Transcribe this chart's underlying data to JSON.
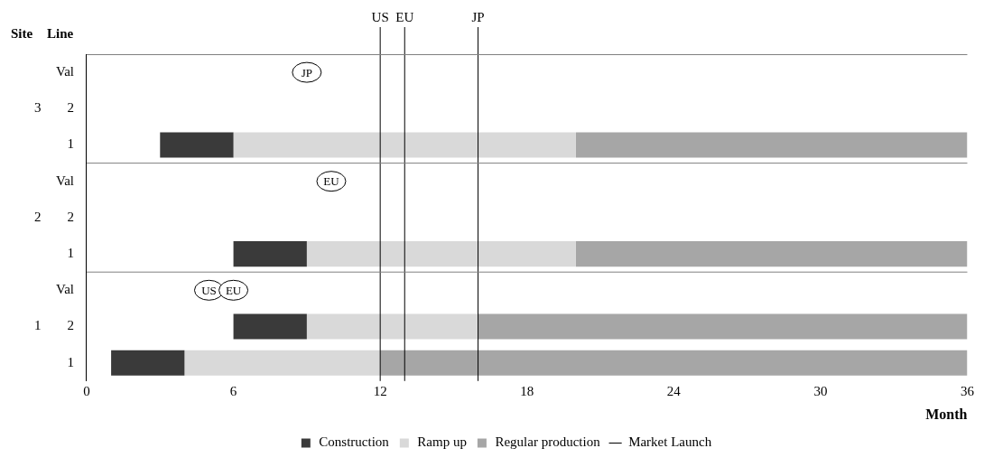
{
  "chart_data": {
    "type": "bar",
    "orientation": "horizontal",
    "ylabel": "Line",
    "xlabel": "Month",
    "categories": [
      "Val",
      "2",
      "1",
      "Val",
      "2",
      "1",
      "Val",
      "2",
      "1"
    ],
    "series": [
      {
        "name": "Construction",
        "color": "#3a3a3a",
        "base": [
          null,
          null,
          3,
          null,
          null,
          6,
          null,
          6,
          1
        ],
        "values": [
          null,
          null,
          3,
          null,
          null,
          3,
          null,
          3,
          3
        ]
      },
      {
        "name": "Ramp up",
        "color": "#d9d9d9",
        "base": [
          null,
          null,
          6,
          null,
          null,
          9,
          null,
          9,
          4
        ],
        "values": [
          null,
          null,
          14,
          null,
          null,
          11,
          null,
          7,
          8
        ]
      },
      {
        "name": "Regular production",
        "color": "#a6a6a6",
        "base": [
          null,
          null,
          20,
          null,
          null,
          20,
          null,
          16,
          12
        ],
        "values": [
          null,
          null,
          16,
          null,
          null,
          16,
          null,
          20,
          24
        ]
      },
      {
        "name": "Market Launch",
        "type": "line",
        "color": "#000000",
        "values": [
          null,
          null,
          null,
          null,
          null,
          null,
          null,
          null,
          null
        ]
      },
      {
        "type": "scatter",
        "color": "#000000",
        "values": [
          9,
          null,
          null,
          10,
          null,
          null,
          5,
          null,
          null
        ],
        "value_labels": [
          "JP",
          null,
          null,
          "EU",
          null,
          null,
          "US",
          null,
          null
        ]
      },
      {
        "type": "scatter",
        "color": "#000000",
        "values": [
          null,
          null,
          null,
          null,
          null,
          null,
          6,
          null,
          null
        ],
        "value_labels": [
          null,
          null,
          null,
          null,
          null,
          null,
          "EU",
          null,
          null
        ]
      }
    ],
    "ref_lines": [
      {
        "axis": "x",
        "value": 12,
        "label": "US",
        "color": "#000000"
      },
      {
        "axis": "x",
        "value": 13,
        "label": "EU",
        "color": "#000000"
      },
      {
        "axis": "x",
        "value": 16,
        "label": "JP",
        "color": "#000000"
      }
    ],
    "annotations": [
      "Site",
      "3",
      "2",
      "1"
    ],
    "xlim": [
      0,
      36
    ],
    "xticks": [
      0,
      6,
      12,
      18,
      24,
      30,
      36
    ],
    "grid": false,
    "legend": "bottom",
    "marker": "circle"
  }
}
